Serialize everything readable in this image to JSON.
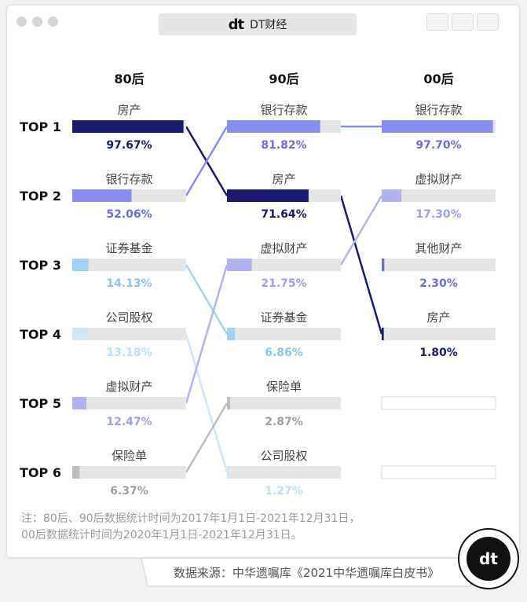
{
  "window": {
    "title": "DT财经",
    "logo_text": "dt"
  },
  "chart_data": {
    "type": "bar",
    "title": "",
    "rows": [
      "TOP 1",
      "TOP 2",
      "TOP 3",
      "TOP 4",
      "TOP 5",
      "TOP 6"
    ],
    "xlim": [
      0,
      100
    ],
    "groups": [
      {
        "name": "80后",
        "items": [
          {
            "label": "房产",
            "value": 97.67,
            "value_text": "97.67%",
            "color": "#181a6e",
            "text_color": "#181a6e"
          },
          {
            "label": "银行存款",
            "value": 52.06,
            "value_text": "52.06%",
            "color": "#8a8df0",
            "text_color": "#6a6de0"
          },
          {
            "label": "证券基金",
            "value": 14.13,
            "value_text": "14.13%",
            "color": "#9fd2f3",
            "text_color": "#86c6ee"
          },
          {
            "label": "公司股权",
            "value": 13.18,
            "value_text": "13.18%",
            "color": "#cde9f8",
            "text_color": "#b9dff4"
          },
          {
            "label": "虚拟财产",
            "value": 12.47,
            "value_text": "12.47%",
            "color": "#b0b2f2",
            "text_color": "#9c9ff0"
          },
          {
            "label": "保险单",
            "value": 6.37,
            "value_text": "6.37%",
            "color": "#bdbdbd",
            "text_color": "#9e9e9e"
          }
        ]
      },
      {
        "name": "90后",
        "items": [
          {
            "label": "银行存款",
            "value": 81.82,
            "value_text": "81.82%",
            "color": "#8a8df0",
            "text_color": "#6a6de0"
          },
          {
            "label": "房产",
            "value": 71.64,
            "value_text": "71.64%",
            "color": "#181a6e",
            "text_color": "#181a6e"
          },
          {
            "label": "虚拟财产",
            "value": 21.75,
            "value_text": "21.75%",
            "color": "#b0b2f2",
            "text_color": "#9c9ff0"
          },
          {
            "label": "证券基金",
            "value": 6.86,
            "value_text": "6.86%",
            "color": "#9fd2f3",
            "text_color": "#86c6ee"
          },
          {
            "label": "保险单",
            "value": 2.87,
            "value_text": "2.87%",
            "color": "#bdbdbd",
            "text_color": "#9e9e9e"
          },
          {
            "label": "公司股权",
            "value": 1.27,
            "value_text": "1.27%",
            "color": "#cde9f8",
            "text_color": "#b9dff4"
          }
        ]
      },
      {
        "name": "00后",
        "items": [
          {
            "label": "银行存款",
            "value": 97.7,
            "value_text": "97.70%",
            "color": "#8a8df0",
            "text_color": "#6a6de0"
          },
          {
            "label": "虚拟财产",
            "value": 17.3,
            "value_text": "17.30%",
            "color": "#b0b2f2",
            "text_color": "#9c9ff0"
          },
          {
            "label": "其他财产",
            "value": 2.3,
            "value_text": "2.30%",
            "color": "#6a6de0",
            "text_color": "#6a6de0"
          },
          {
            "label": "房产",
            "value": 1.8,
            "value_text": "1.80%",
            "color": "#181a6e",
            "text_color": "#181a6e"
          },
          null,
          null
        ]
      }
    ]
  },
  "note": {
    "line1": "注：80后、90后数据统计时间为2017年1月1日-2021年12月31日，",
    "line2": "00后数据统计时间为2020年1月1日-2021年12月31日。"
  },
  "source": "数据来源：中华遗嘱库《2021中华遗嘱库白皮书》",
  "badge_text": "dt"
}
